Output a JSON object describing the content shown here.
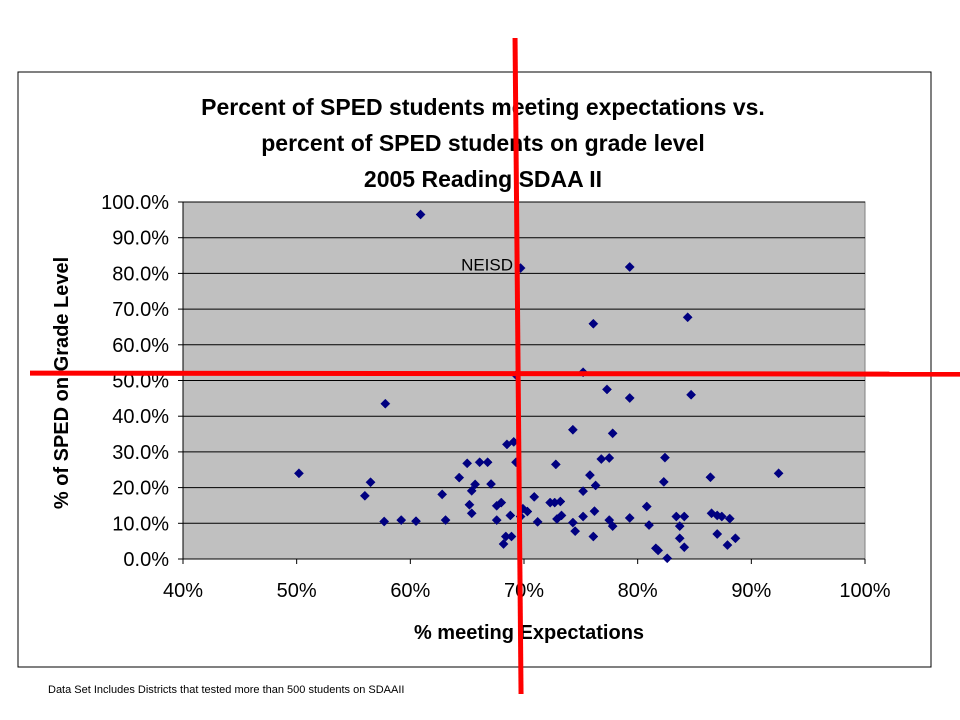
{
  "chart_data": {
    "type": "scatter",
    "title_lines": [
      "Percent of SPED students meeting expectations vs.",
      "percent of SPED students on grade level",
      "2005 Reading SDAA II"
    ],
    "xlabel": "% meeting Expectations",
    "ylabel": "% of SPED on Grade Level",
    "xlim": [
      40,
      100
    ],
    "ylim": [
      0,
      100
    ],
    "x_ticks": [
      "40%",
      "50%",
      "60%",
      "70%",
      "80%",
      "90%",
      "100%"
    ],
    "y_ticks": [
      "0.0%",
      "10.0%",
      "20.0%",
      "30.0%",
      "40.0%",
      "50.0%",
      "60.0%",
      "70.0%",
      "80.0%",
      "90.0%",
      "100.0%"
    ],
    "grid": "horizontal",
    "plot_background": "#c0c0c0",
    "marker_color": "#000080",
    "reference_line_color": "#ff0000",
    "reference_lines": {
      "x": 69.3,
      "y": 51.5
    },
    "annotation": {
      "text": "NEISD",
      "x": 69.3,
      "y": 51.5
    },
    "points": [
      {
        "x": 50.2,
        "y": 24.0
      },
      {
        "x": 56.0,
        "y": 17.7
      },
      {
        "x": 56.5,
        "y": 21.5
      },
      {
        "x": 57.7,
        "y": 10.5
      },
      {
        "x": 57.8,
        "y": 43.5
      },
      {
        "x": 59.2,
        "y": 10.9
      },
      {
        "x": 60.5,
        "y": 10.6
      },
      {
        "x": 60.9,
        "y": 96.5
      },
      {
        "x": 62.8,
        "y": 18.1
      },
      {
        "x": 63.1,
        "y": 10.9
      },
      {
        "x": 64.3,
        "y": 22.8
      },
      {
        "x": 65.0,
        "y": 26.8
      },
      {
        "x": 65.2,
        "y": 15.2
      },
      {
        "x": 65.4,
        "y": 12.8
      },
      {
        "x": 65.4,
        "y": 19.1
      },
      {
        "x": 65.7,
        "y": 20.9
      },
      {
        "x": 66.1,
        "y": 27.1
      },
      {
        "x": 66.8,
        "y": 27.1
      },
      {
        "x": 67.1,
        "y": 21.0
      },
      {
        "x": 67.6,
        "y": 14.9
      },
      {
        "x": 67.6,
        "y": 10.9
      },
      {
        "x": 68.0,
        "y": 15.8
      },
      {
        "x": 68.2,
        "y": 4.2
      },
      {
        "x": 68.4,
        "y": 6.3
      },
      {
        "x": 68.5,
        "y": 32.1
      },
      {
        "x": 68.8,
        "y": 12.2
      },
      {
        "x": 68.9,
        "y": 6.3
      },
      {
        "x": 69.1,
        "y": 32.8
      },
      {
        "x": 69.3,
        "y": 51.5
      },
      {
        "x": 69.3,
        "y": 27.1
      },
      {
        "x": 69.7,
        "y": 11.9
      },
      {
        "x": 69.7,
        "y": 81.5
      },
      {
        "x": 69.9,
        "y": 14.1
      },
      {
        "x": 70.3,
        "y": 13.3
      },
      {
        "x": 70.9,
        "y": 17.4
      },
      {
        "x": 71.2,
        "y": 10.4
      },
      {
        "x": 72.3,
        "y": 15.8
      },
      {
        "x": 72.7,
        "y": 15.8
      },
      {
        "x": 72.8,
        "y": 26.5
      },
      {
        "x": 72.9,
        "y": 11.2
      },
      {
        "x": 73.2,
        "y": 16.1
      },
      {
        "x": 73.3,
        "y": 12.2
      },
      {
        "x": 74.3,
        "y": 36.2
      },
      {
        "x": 74.3,
        "y": 10.2
      },
      {
        "x": 74.5,
        "y": 7.8
      },
      {
        "x": 75.2,
        "y": 52.3
      },
      {
        "x": 75.2,
        "y": 19.0
      },
      {
        "x": 75.2,
        "y": 11.9
      },
      {
        "x": 75.8,
        "y": 23.5
      },
      {
        "x": 76.1,
        "y": 65.9
      },
      {
        "x": 76.2,
        "y": 13.4
      },
      {
        "x": 76.3,
        "y": 20.6
      },
      {
        "x": 76.1,
        "y": 6.3
      },
      {
        "x": 76.8,
        "y": 28.0
      },
      {
        "x": 77.3,
        "y": 47.5
      },
      {
        "x": 77.5,
        "y": 28.3
      },
      {
        "x": 77.5,
        "y": 10.9
      },
      {
        "x": 77.8,
        "y": 9.2
      },
      {
        "x": 77.8,
        "y": 35.2
      },
      {
        "x": 79.3,
        "y": 81.8
      },
      {
        "x": 79.3,
        "y": 45.1
      },
      {
        "x": 79.3,
        "y": 11.5
      },
      {
        "x": 80.8,
        "y": 14.7
      },
      {
        "x": 81.0,
        "y": 9.5
      },
      {
        "x": 81.6,
        "y": 3.0
      },
      {
        "x": 81.8,
        "y": 2.4
      },
      {
        "x": 82.3,
        "y": 21.6
      },
      {
        "x": 82.4,
        "y": 28.4
      },
      {
        "x": 82.6,
        "y": 0.2
      },
      {
        "x": 83.4,
        "y": 11.9
      },
      {
        "x": 83.7,
        "y": 9.2
      },
      {
        "x": 83.7,
        "y": 5.8
      },
      {
        "x": 84.1,
        "y": 11.9
      },
      {
        "x": 84.1,
        "y": 3.3
      },
      {
        "x": 84.4,
        "y": 67.7
      },
      {
        "x": 84.7,
        "y": 46.0
      },
      {
        "x": 86.4,
        "y": 22.9
      },
      {
        "x": 86.5,
        "y": 12.8
      },
      {
        "x": 87.0,
        "y": 12.2
      },
      {
        "x": 87.0,
        "y": 7.0
      },
      {
        "x": 87.4,
        "y": 11.9
      },
      {
        "x": 87.9,
        "y": 3.9
      },
      {
        "x": 88.1,
        "y": 11.3
      },
      {
        "x": 88.6,
        "y": 5.8
      },
      {
        "x": 92.4,
        "y": 24.0
      }
    ]
  },
  "footnote": "Data Set Includes Districts that tested more than 500 students on SDAAII"
}
